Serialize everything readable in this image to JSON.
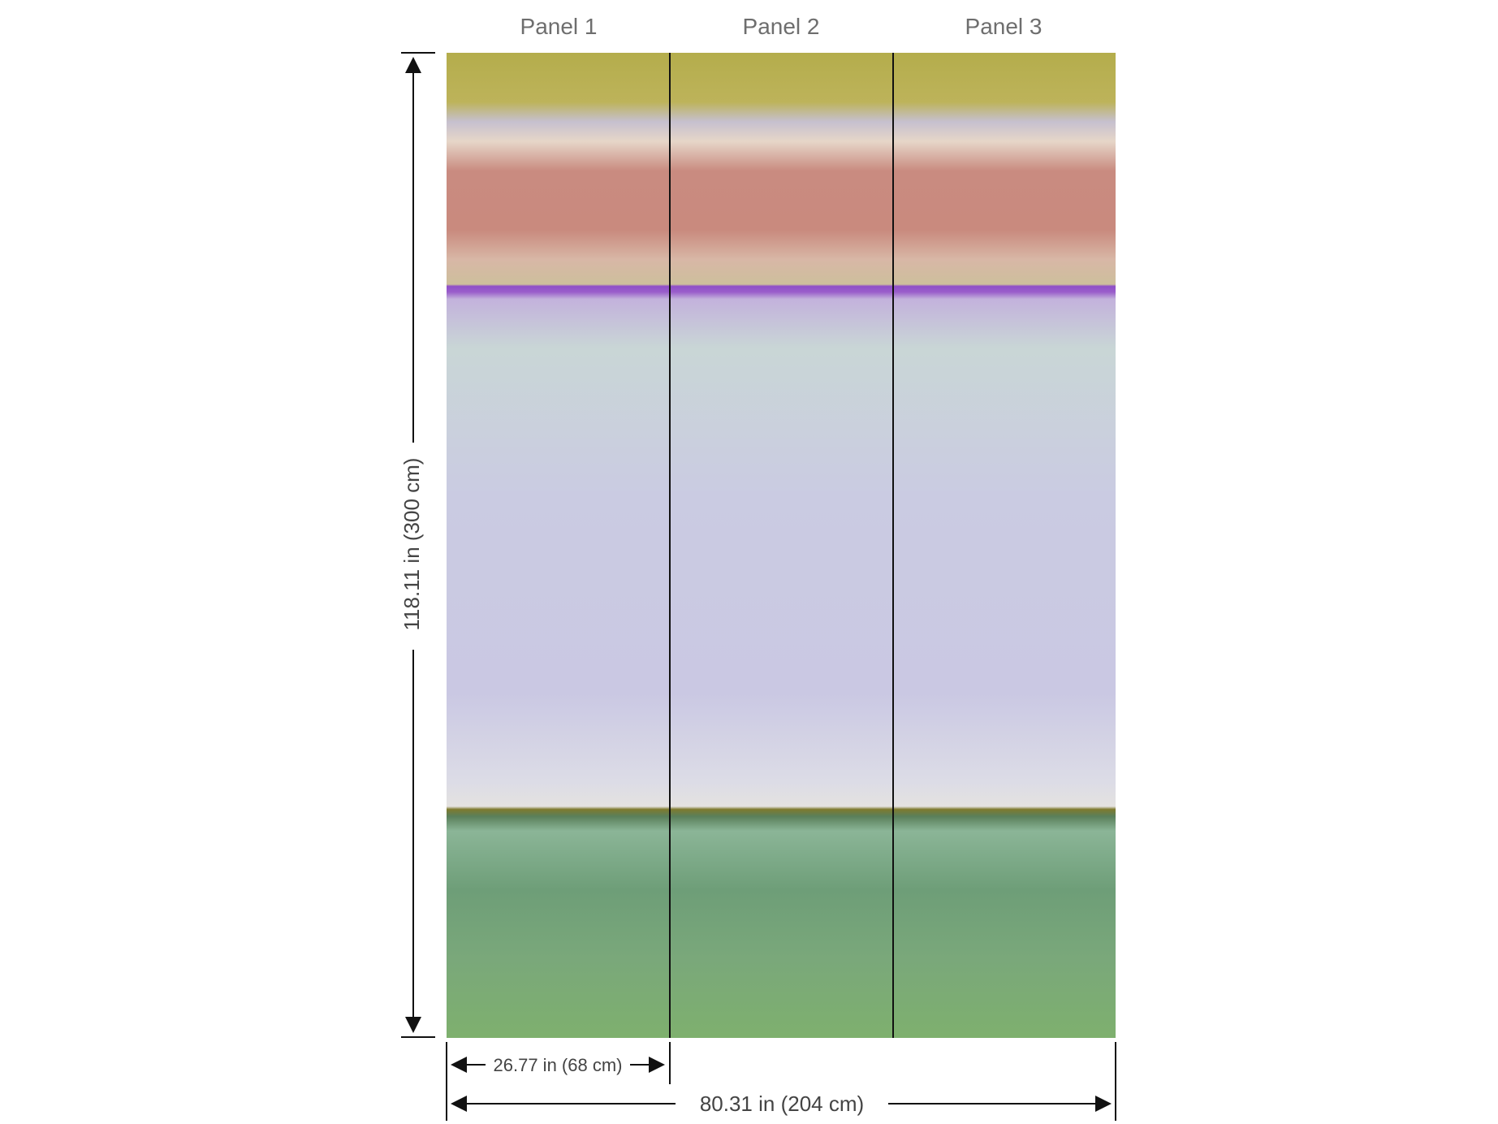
{
  "panels": [
    {
      "label": "Panel 1"
    },
    {
      "label": "Panel 2"
    },
    {
      "label": "Panel 3"
    }
  ],
  "dimensions": {
    "height": "118.11 in (300 cm)",
    "panel_width": "26.77 in (68 cm)",
    "total_width": "80.31 in (204 cm)"
  }
}
